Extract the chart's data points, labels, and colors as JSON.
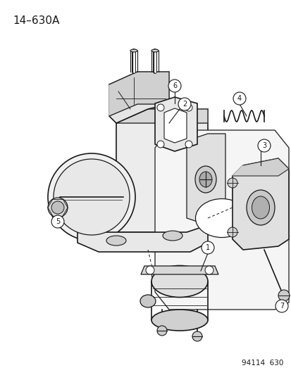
{
  "title": "14–630A",
  "footer": "94114  630",
  "bg_color": "#ffffff",
  "line_color": "#1a1a1a",
  "title_fontsize": 11,
  "footer_fontsize": 7.5,
  "fig_width": 4.14,
  "fig_height": 5.33,
  "dpi": 100
}
